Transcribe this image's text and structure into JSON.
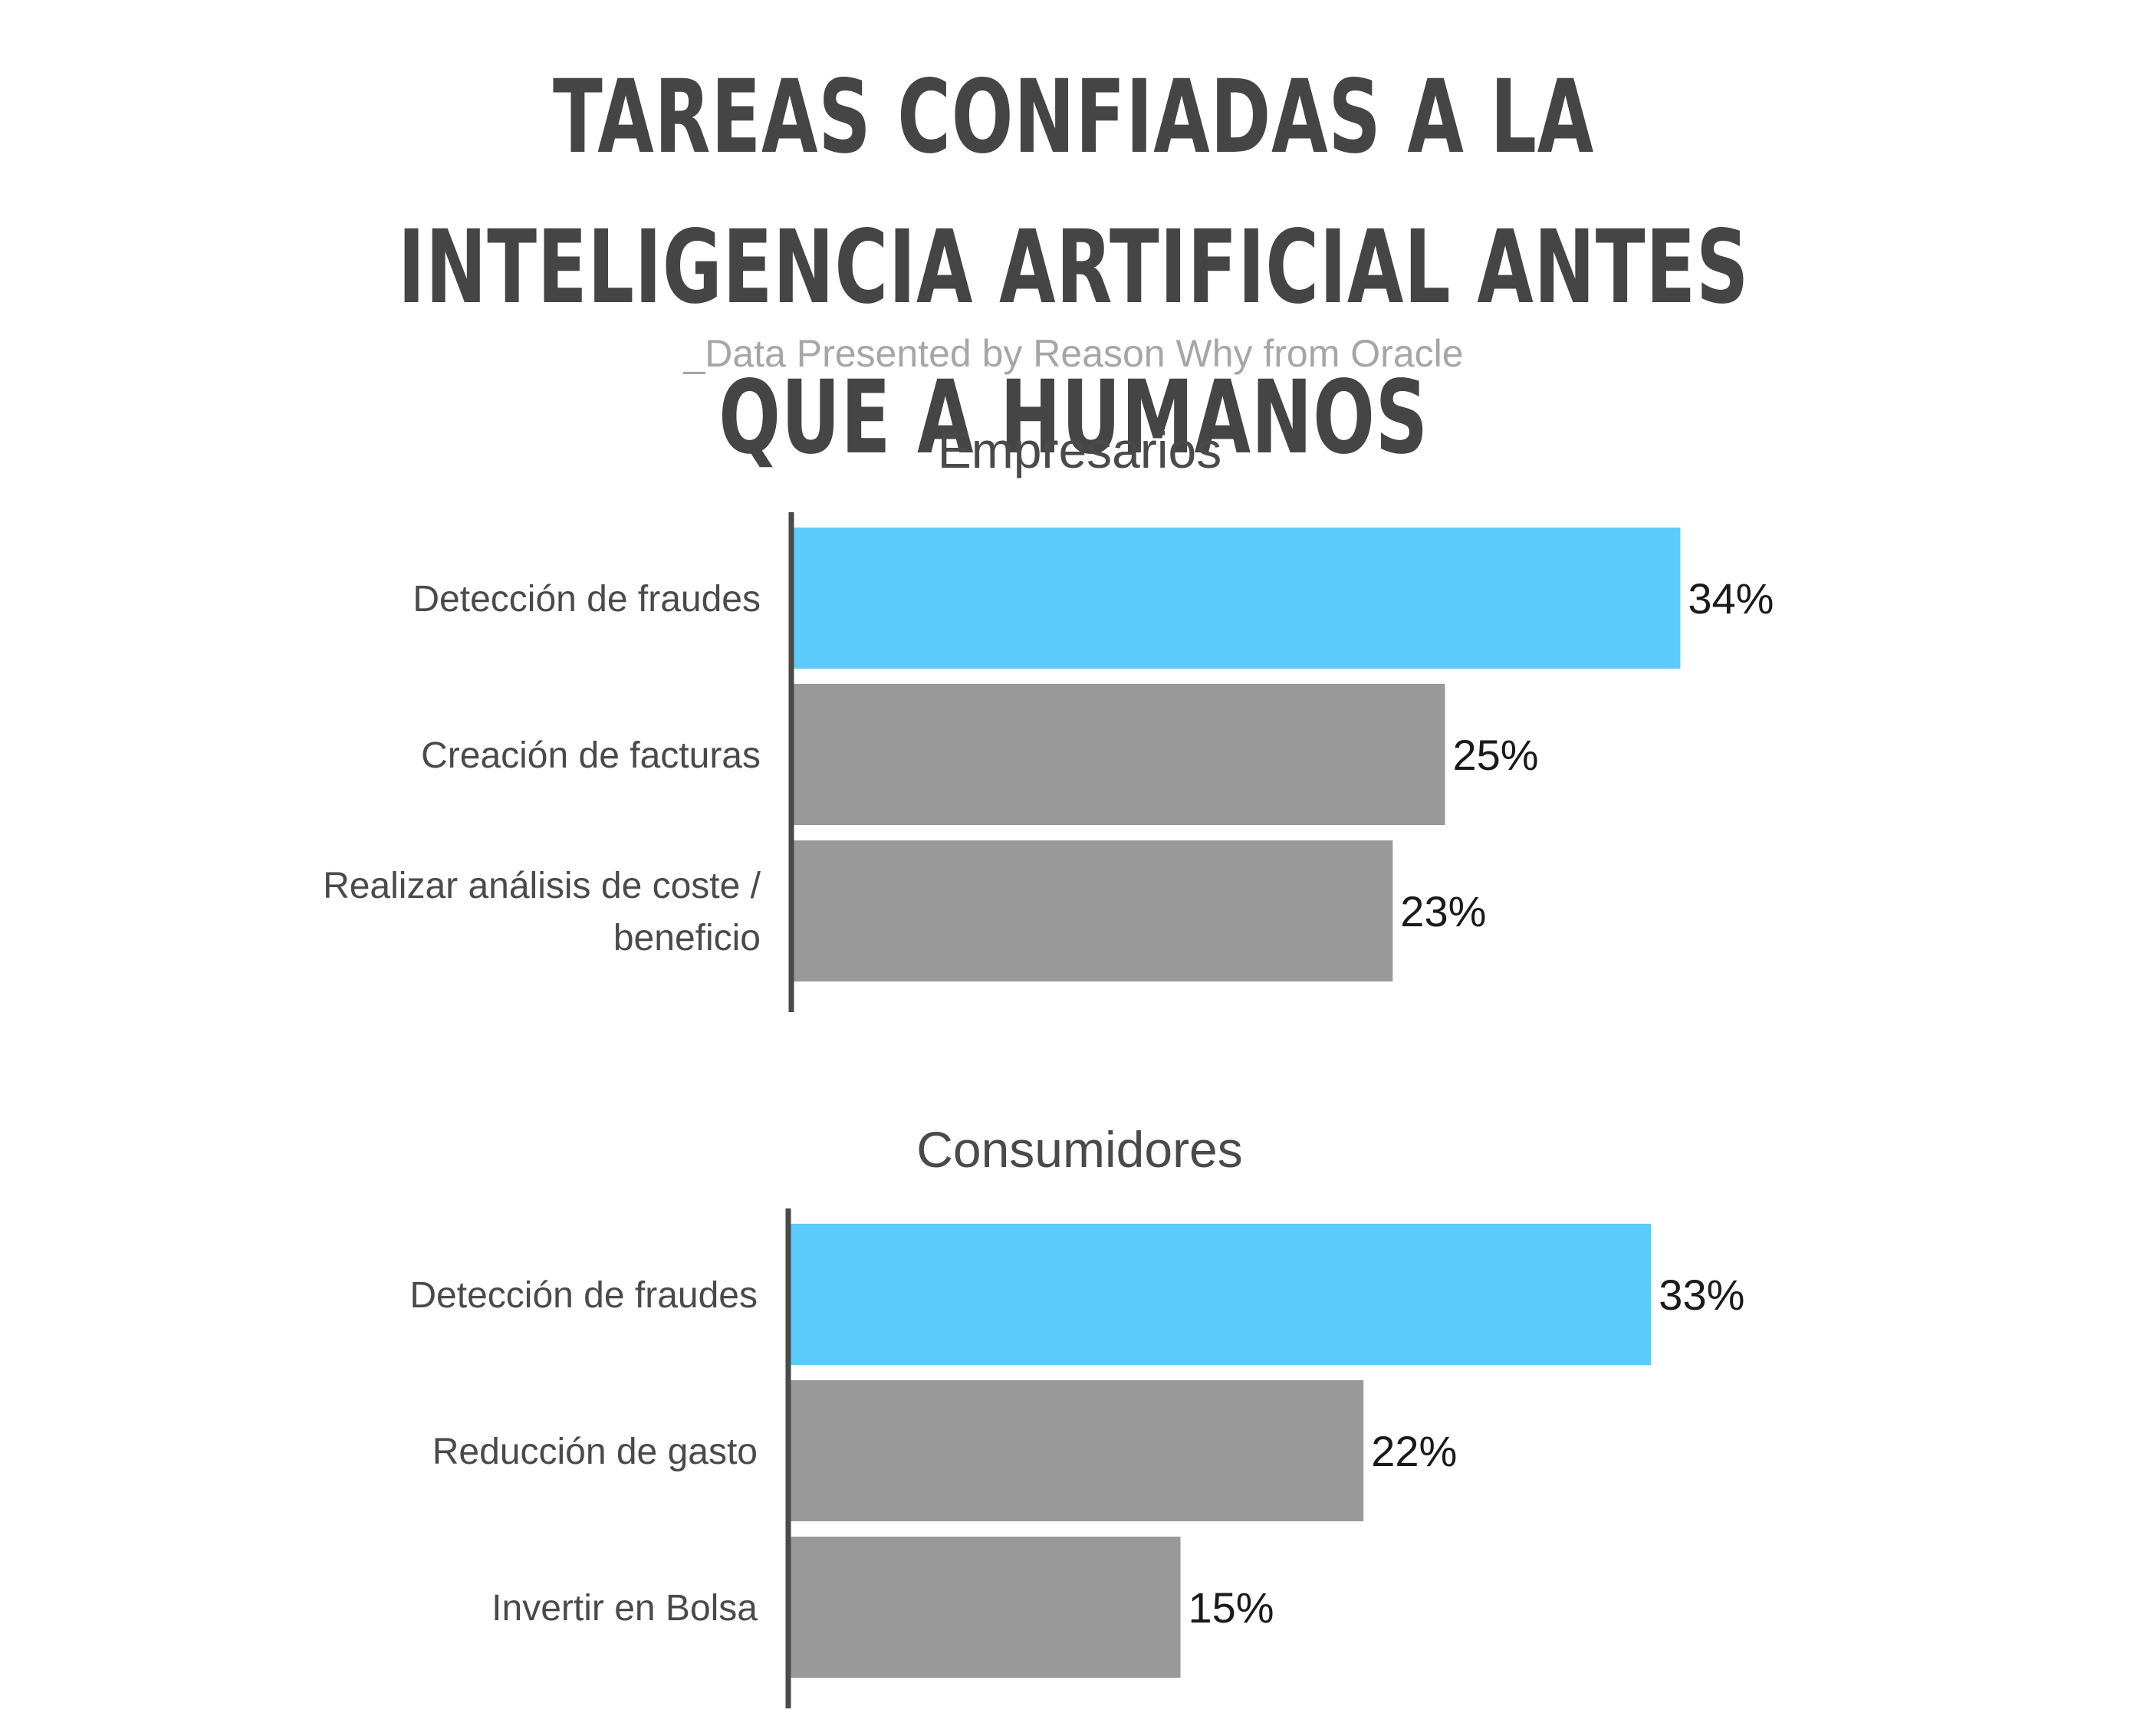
{
  "title": "TAREAS CONFIADAS A LA INTELIGENCIA ARTIFICIAL ANTES QUE A HUMANOS",
  "subtitle": "_Data Presented by Reason Why from Oracle",
  "colors": {
    "highlight": "#5BCBFB",
    "default": "#999999",
    "axis": "#4a4a4a"
  },
  "chart_data": [
    {
      "type": "bar",
      "orientation": "horizontal",
      "title": "Empresarios",
      "categories": [
        "Detección de fraudes",
        "Creación de facturas",
        "Realizar análisis de coste / beneficio"
      ],
      "values": [
        34,
        25,
        23
      ],
      "value_labels": [
        "34%",
        "25%",
        "23%"
      ],
      "highlight": [
        true,
        false,
        false
      ],
      "unit": "%",
      "grid": false
    },
    {
      "type": "bar",
      "orientation": "horizontal",
      "title": "Consumidores",
      "categories": [
        "Detección de fraudes",
        "Reducción de gasto",
        "Invertir en Bolsa"
      ],
      "values": [
        33,
        22,
        15
      ],
      "value_labels": [
        "33%",
        "22%",
        "15%"
      ],
      "highlight": [
        true,
        false,
        false
      ],
      "unit": "%",
      "grid": false
    }
  ]
}
